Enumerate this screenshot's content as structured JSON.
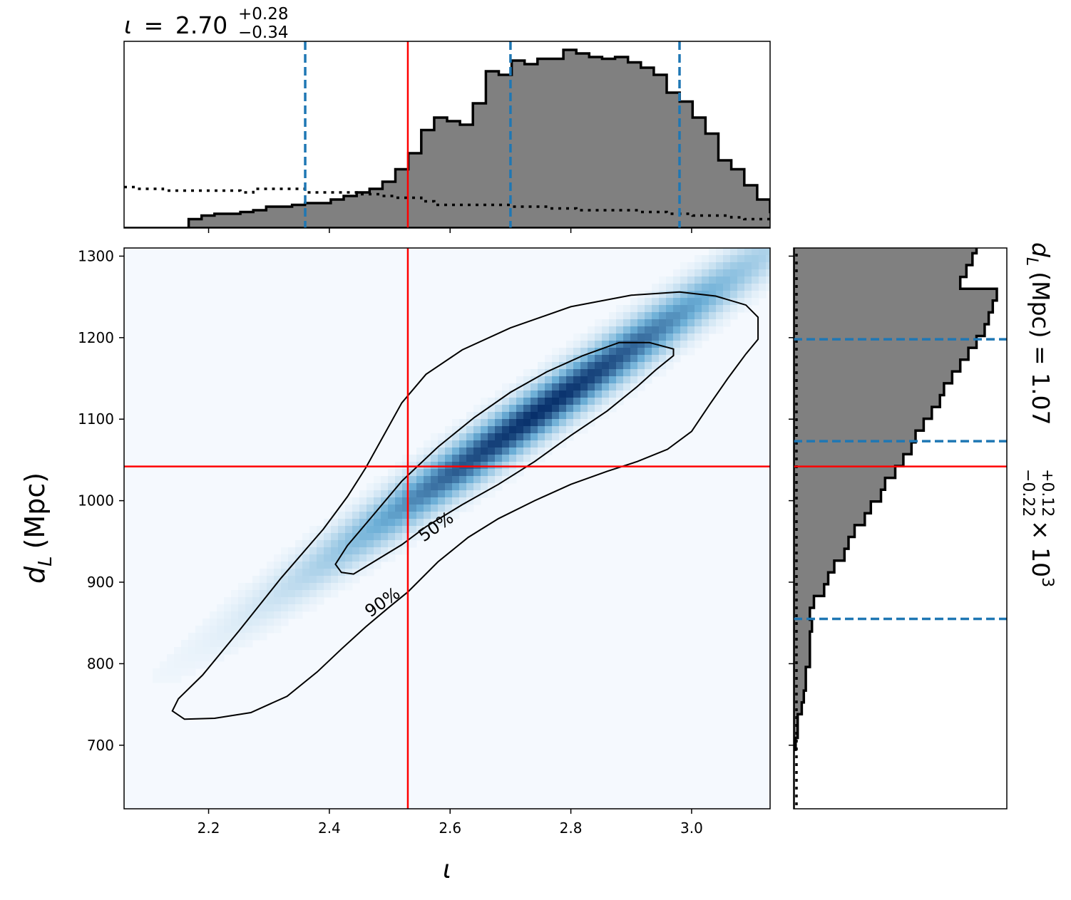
{
  "chart_data": {
    "type": "heatmap",
    "title_top": {
      "symbol": "ι",
      "value": "2.70",
      "plus": "+0.28",
      "minus": "−0.34"
    },
    "title_right": {
      "prefix": "d",
      "subscript": "L",
      "unit": "(Mpc) = 1.07",
      "plus": "+0.12",
      "minus": "−0.22",
      "suffix": "× 10",
      "exponent": "3"
    },
    "xlabel": "ι",
    "ylabel_main": "d",
    "ylabel_sub": "L",
    "ylabel_unit": "(Mpc)",
    "xlim": [
      2.06,
      3.13
    ],
    "ylim": [
      622,
      1310
    ],
    "x_ticks": [
      "2.2",
      "2.4",
      "2.6",
      "2.8",
      "3.0"
    ],
    "x_tick_values": [
      2.2,
      2.4,
      2.6,
      2.8,
      3.0
    ],
    "y_ticks": [
      "700",
      "800",
      "900",
      "1000",
      "1100",
      "1200",
      "1300"
    ],
    "y_tick_values": [
      700,
      800,
      900,
      1000,
      1100,
      1200,
      1300
    ],
    "injected": {
      "iota": 2.53,
      "dL": 1042
    },
    "iota_quantiles": [
      2.36,
      2.7,
      2.98
    ],
    "dL_quantiles": [
      855,
      1073,
      1198
    ],
    "contour_labels": [
      "50%",
      "90%"
    ],
    "contour_90": [
      [
        2.16,
        732
      ],
      [
        2.21,
        733
      ],
      [
        2.27,
        740
      ],
      [
        2.33,
        760
      ],
      [
        2.38,
        790
      ],
      [
        2.42,
        818
      ],
      [
        2.46,
        845
      ],
      [
        2.5,
        870
      ],
      [
        2.53,
        888
      ],
      [
        2.58,
        925
      ],
      [
        2.63,
        955
      ],
      [
        2.68,
        978
      ],
      [
        2.74,
        1000
      ],
      [
        2.8,
        1020
      ],
      [
        2.86,
        1036
      ],
      [
        2.91,
        1048
      ],
      [
        2.96,
        1063
      ],
      [
        3.0,
        1085
      ],
      [
        3.03,
        1118
      ],
      [
        3.06,
        1150
      ],
      [
        3.09,
        1180
      ],
      [
        3.11,
        1198
      ],
      [
        3.11,
        1225
      ],
      [
        3.09,
        1240
      ],
      [
        3.04,
        1251
      ],
      [
        2.98,
        1256
      ],
      [
        2.9,
        1252
      ],
      [
        2.8,
        1238
      ],
      [
        2.7,
        1212
      ],
      [
        2.62,
        1185
      ],
      [
        2.56,
        1155
      ],
      [
        2.52,
        1120
      ],
      [
        2.49,
        1080
      ],
      [
        2.46,
        1040
      ],
      [
        2.43,
        1005
      ],
      [
        2.39,
        965
      ],
      [
        2.32,
        905
      ],
      [
        2.25,
        840
      ],
      [
        2.19,
        786
      ],
      [
        2.15,
        757
      ],
      [
        2.14,
        742
      ],
      [
        2.16,
        732
      ]
    ],
    "contour_50": [
      [
        2.42,
        912
      ],
      [
        2.44,
        910
      ],
      [
        2.48,
        928
      ],
      [
        2.52,
        946
      ],
      [
        2.56,
        968
      ],
      [
        2.62,
        995
      ],
      [
        2.68,
        1020
      ],
      [
        2.74,
        1048
      ],
      [
        2.8,
        1080
      ],
      [
        2.86,
        1110
      ],
      [
        2.91,
        1140
      ],
      [
        2.94,
        1160
      ],
      [
        2.97,
        1178
      ],
      [
        2.97,
        1186
      ],
      [
        2.93,
        1194
      ],
      [
        2.88,
        1194
      ],
      [
        2.82,
        1178
      ],
      [
        2.76,
        1158
      ],
      [
        2.7,
        1133
      ],
      [
        2.64,
        1102
      ],
      [
        2.58,
        1066
      ],
      [
        2.52,
        1024
      ],
      [
        2.47,
        980
      ],
      [
        2.43,
        945
      ],
      [
        2.41,
        922
      ],
      [
        2.42,
        912
      ]
    ],
    "density": {
      "mean": [
        2.75,
        1110
      ],
      "sd_along": 0.28,
      "sd_across": 18
    },
    "iota_hist": {
      "bin_start": 2.06,
      "bin_width": 0.0214,
      "values": [
        0.0,
        0.0,
        0.0,
        0.0,
        0.0,
        0.05,
        0.07,
        0.08,
        0.08,
        0.09,
        0.1,
        0.12,
        0.12,
        0.13,
        0.14,
        0.14,
        0.16,
        0.18,
        0.2,
        0.22,
        0.26,
        0.33,
        0.42,
        0.55,
        0.62,
        0.6,
        0.58,
        0.7,
        0.88,
        0.86,
        0.94,
        0.92,
        0.95,
        0.95,
        1.0,
        0.98,
        0.96,
        0.95,
        0.96,
        0.93,
        0.9,
        0.86,
        0.76,
        0.71,
        0.62,
        0.53,
        0.38,
        0.33,
        0.24,
        0.16,
        0.09,
        0.05,
        0.02
      ]
    },
    "iota_prior": {
      "bin_start": 2.06,
      "bin_width": 0.0214,
      "values": [
        0.23,
        0.22,
        0.22,
        0.21,
        0.21,
        0.21,
        0.21,
        0.21,
        0.21,
        0.2,
        0.22,
        0.22,
        0.22,
        0.22,
        0.2,
        0.2,
        0.2,
        0.2,
        0.19,
        0.19,
        0.18,
        0.17,
        0.17,
        0.15,
        0.13,
        0.13,
        0.13,
        0.13,
        0.13,
        0.13,
        0.12,
        0.12,
        0.12,
        0.11,
        0.11,
        0.1,
        0.1,
        0.1,
        0.1,
        0.1,
        0.09,
        0.09,
        0.08,
        0.08,
        0.07,
        0.07,
        0.07,
        0.06,
        0.05,
        0.05,
        0.04,
        0.03,
        0.02
      ]
    },
    "dL_hist": {
      "bin_start": 622,
      "bin_width": 14.5,
      "values": [
        0.0,
        0.0,
        0.0,
        0.0,
        0.0,
        0.01,
        0.02,
        0.02,
        0.04,
        0.05,
        0.06,
        0.06,
        0.08,
        0.08,
        0.08,
        0.09,
        0.08,
        0.1,
        0.15,
        0.17,
        0.2,
        0.25,
        0.27,
        0.3,
        0.35,
        0.38,
        0.43,
        0.45,
        0.5,
        0.54,
        0.58,
        0.6,
        0.64,
        0.68,
        0.72,
        0.74,
        0.78,
        0.82,
        0.86,
        0.9,
        0.94,
        0.96,
        0.98,
        1.0,
        0.82,
        0.85,
        0.88,
        0.9,
        0.91,
        0.89,
        0.84,
        0.74,
        0.6,
        0.5,
        0.4,
        0.3,
        0.2,
        0.1,
        0.06,
        0.04,
        0.02,
        0.0
      ]
    }
  }
}
